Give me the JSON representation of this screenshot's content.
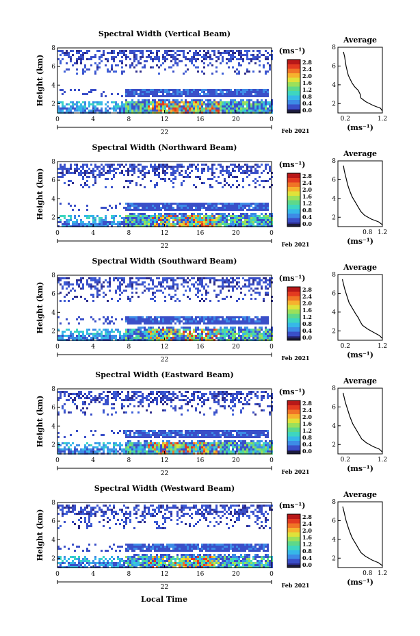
{
  "figure": {
    "x_axis_label": "Local Time",
    "date_label": "Feb 2021",
    "day_label": "22",
    "colorbar_unit_label": "(ms⁻¹)",
    "profile_title": "Average",
    "profile_unit_label": "(ms⁻¹)",
    "height_label": "Height (km)"
  },
  "colors": {
    "colormap": [
      "#2c2c8c",
      "#3a4fc8",
      "#3d8be6",
      "#36b8e8",
      "#3ed6c0",
      "#5ed88a",
      "#9be05a",
      "#dfe23a",
      "#f6b22e",
      "#f07426",
      "#e33a20",
      "#b81818"
    ],
    "bottom_swatch": "#1c1c3c"
  },
  "chart_data": [
    {
      "type": "heatmap",
      "title": "Spectral Width (Vertical Beam)",
      "x_ticks": [
        "0",
        "4",
        "8",
        "12",
        "16",
        "20",
        "0"
      ],
      "xlim": [
        0,
        24
      ],
      "ylim": [
        1,
        8
      ],
      "y_ticks": [
        "2",
        "4",
        "6",
        "8"
      ],
      "colorbar": {
        "range": [
          0.0,
          2.8
        ],
        "ticks": [
          "2.8",
          "2.4",
          "2.0",
          "1.6",
          "1.2",
          "0.8",
          "0.4",
          "0.0"
        ]
      },
      "profile": {
        "xlim": [
          0.0,
          1.2
        ],
        "x_ticks": [
          "0.2",
          "1.2"
        ],
        "ylim": [
          1,
          8
        ],
        "y_ticks": [
          "2",
          "4",
          "6",
          "8"
        ],
        "height_km": [
          7.5,
          7.0,
          6.5,
          6.0,
          5.5,
          5.0,
          4.6,
          4.2,
          3.8,
          3.4,
          3.0,
          2.6,
          2.2,
          1.8,
          1.5,
          1.2
        ],
        "width": [
          0.15,
          0.18,
          0.2,
          0.22,
          0.25,
          0.28,
          0.33,
          0.38,
          0.45,
          0.55,
          0.6,
          0.62,
          0.75,
          0.95,
          1.15,
          1.2
        ]
      }
    },
    {
      "type": "heatmap",
      "title": "Spectral Width (Northward Beam)",
      "x_ticks": [
        "0",
        "4",
        "8",
        "12",
        "16",
        "20",
        "0"
      ],
      "xlim": [
        0,
        24
      ],
      "ylim": [
        1,
        8
      ],
      "y_ticks": [
        "2",
        "4",
        "6",
        "8"
      ],
      "colorbar": {
        "range": [
          0.0,
          2.8
        ],
        "ticks": [
          "2.8",
          "2.4",
          "2.0",
          "1.6",
          "1.2",
          "0.8",
          "0.4",
          "0.0"
        ]
      },
      "profile": {
        "xlim": [
          0.0,
          1.2
        ],
        "x_ticks": [
          "0.8",
          "1.2"
        ],
        "ylim": [
          1,
          8
        ],
        "y_ticks": [
          "2",
          "4",
          "6",
          "8"
        ],
        "height_km": [
          7.5,
          7.0,
          6.5,
          6.0,
          5.5,
          5.0,
          4.6,
          4.2,
          3.8,
          3.4,
          3.0,
          2.6,
          2.2,
          1.8,
          1.5,
          1.2
        ],
        "width": [
          0.15,
          0.17,
          0.2,
          0.23,
          0.26,
          0.3,
          0.34,
          0.38,
          0.44,
          0.5,
          0.56,
          0.62,
          0.72,
          0.9,
          1.1,
          1.2
        ]
      }
    },
    {
      "type": "heatmap",
      "title": "Spectral Width (Southward Beam)",
      "x_ticks": [
        "0",
        "4",
        "8",
        "12",
        "16",
        "20",
        "0"
      ],
      "xlim": [
        0,
        24
      ],
      "ylim": [
        1,
        8
      ],
      "y_ticks": [
        "2",
        "4",
        "6",
        "8"
      ],
      "colorbar": {
        "range": [
          0.0,
          2.8
        ],
        "ticks": [
          "2.8",
          "2.4",
          "2.0",
          "1.6",
          "1.2",
          "0.8",
          "0.4",
          "0.0"
        ]
      },
      "profile": {
        "xlim": [
          0.0,
          1.2
        ],
        "x_ticks": [
          "0.2",
          "1.2"
        ],
        "ylim": [
          1,
          8
        ],
        "y_ticks": [
          "2",
          "4",
          "6",
          "8"
        ],
        "height_km": [
          7.5,
          7.0,
          6.5,
          6.0,
          5.5,
          5.0,
          4.6,
          4.2,
          3.8,
          3.4,
          3.0,
          2.6,
          2.2,
          1.8,
          1.5,
          1.2
        ],
        "width": [
          0.12,
          0.15,
          0.18,
          0.22,
          0.26,
          0.3,
          0.36,
          0.42,
          0.48,
          0.55,
          0.6,
          0.66,
          0.8,
          0.98,
          1.12,
          1.2
        ]
      }
    },
    {
      "type": "heatmap",
      "title": "Spectral Width (Eastward Beam)",
      "x_ticks": [
        "0",
        "4",
        "8",
        "12",
        "16",
        "20",
        "0"
      ],
      "xlim": [
        0,
        24
      ],
      "ylim": [
        1,
        8
      ],
      "y_ticks": [
        "2",
        "4",
        "6",
        "8"
      ],
      "colorbar": {
        "range": [
          0.0,
          2.8
        ],
        "ticks": [
          "2.8",
          "2.4",
          "2.0",
          "1.6",
          "1.2",
          "0.8",
          "0.4",
          "0.0"
        ]
      },
      "profile": {
        "xlim": [
          0.0,
          1.2
        ],
        "x_ticks": [
          "0.2",
          "1.2"
        ],
        "ylim": [
          1,
          8
        ],
        "y_ticks": [
          "2",
          "4",
          "6",
          "8"
        ],
        "height_km": [
          7.5,
          7.0,
          6.5,
          6.0,
          5.5,
          5.0,
          4.6,
          4.2,
          3.8,
          3.4,
          3.0,
          2.6,
          2.2,
          1.8,
          1.5,
          1.2
        ],
        "width": [
          0.14,
          0.17,
          0.2,
          0.24,
          0.28,
          0.32,
          0.36,
          0.4,
          0.46,
          0.52,
          0.58,
          0.64,
          0.76,
          0.94,
          1.12,
          1.2
        ]
      }
    },
    {
      "type": "heatmap",
      "title": "Spectral Width (Westward Beam)",
      "x_ticks": [
        "0",
        "4",
        "8",
        "12",
        "16",
        "20",
        "0"
      ],
      "xlim": [
        0,
        24
      ],
      "ylim": [
        1,
        8
      ],
      "y_ticks": [
        "2",
        "4",
        "6",
        "8"
      ],
      "colorbar": {
        "range": [
          0.0,
          2.8
        ],
        "ticks": [
          "2.8",
          "2.4",
          "2.0",
          "1.6",
          "1.2",
          "0.8",
          "0.4",
          "0.0"
        ]
      },
      "profile": {
        "xlim": [
          0.0,
          1.2
        ],
        "x_ticks": [
          "0.8",
          "1.2"
        ],
        "ylim": [
          1,
          8
        ],
        "y_ticks": [
          "2",
          "4",
          "6",
          "8"
        ],
        "height_km": [
          7.5,
          7.0,
          6.5,
          6.0,
          5.5,
          5.0,
          4.6,
          4.2,
          3.8,
          3.4,
          3.0,
          2.6,
          2.2,
          1.8,
          1.5,
          1.2
        ],
        "width": [
          0.13,
          0.16,
          0.19,
          0.22,
          0.26,
          0.3,
          0.34,
          0.38,
          0.44,
          0.5,
          0.56,
          0.62,
          0.74,
          0.92,
          1.1,
          1.2
        ]
      }
    }
  ]
}
